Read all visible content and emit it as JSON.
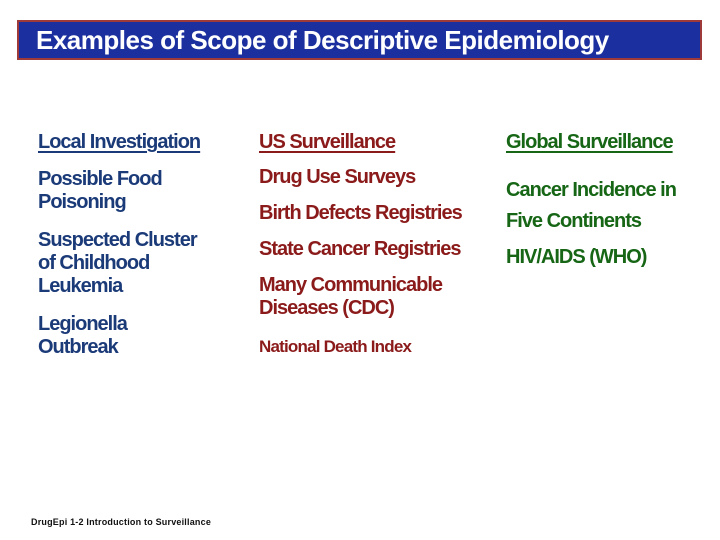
{
  "slide": {
    "title": "Examples of Scope of Descriptive Epidemiology",
    "footer": "DrugEpi 1-2 Introduction  to Surveillance",
    "columns": [
      {
        "header": "Local Investigation",
        "items": [
          "Possible Food\nPoisoning",
          "Suspected Cluster\nof Childhood\nLeukemia",
          "Legionella\nOutbreak"
        ]
      },
      {
        "header": "US Surveillance",
        "items": [
          "Drug Use Surveys",
          "Birth Defects Registries",
          "State Cancer Registries",
          "Many Communicable\nDiseases (CDC)",
          "National Death Index"
        ]
      },
      {
        "header": "Global Surveillance",
        "items": [
          "Cancer Incidence in\nFive Continents",
          "HIV/AIDS (WHO)"
        ]
      }
    ],
    "colors": {
      "title_bar_fill": "#1B309E",
      "title_bar_border": "#9E3A3A",
      "title_text": "#FFFFFF",
      "column1_text": "#1B3A78",
      "column2_text": "#8B1A1A",
      "column3_text": "#166616",
      "footer_text": "#111111",
      "background": "#FFFFFF"
    }
  }
}
